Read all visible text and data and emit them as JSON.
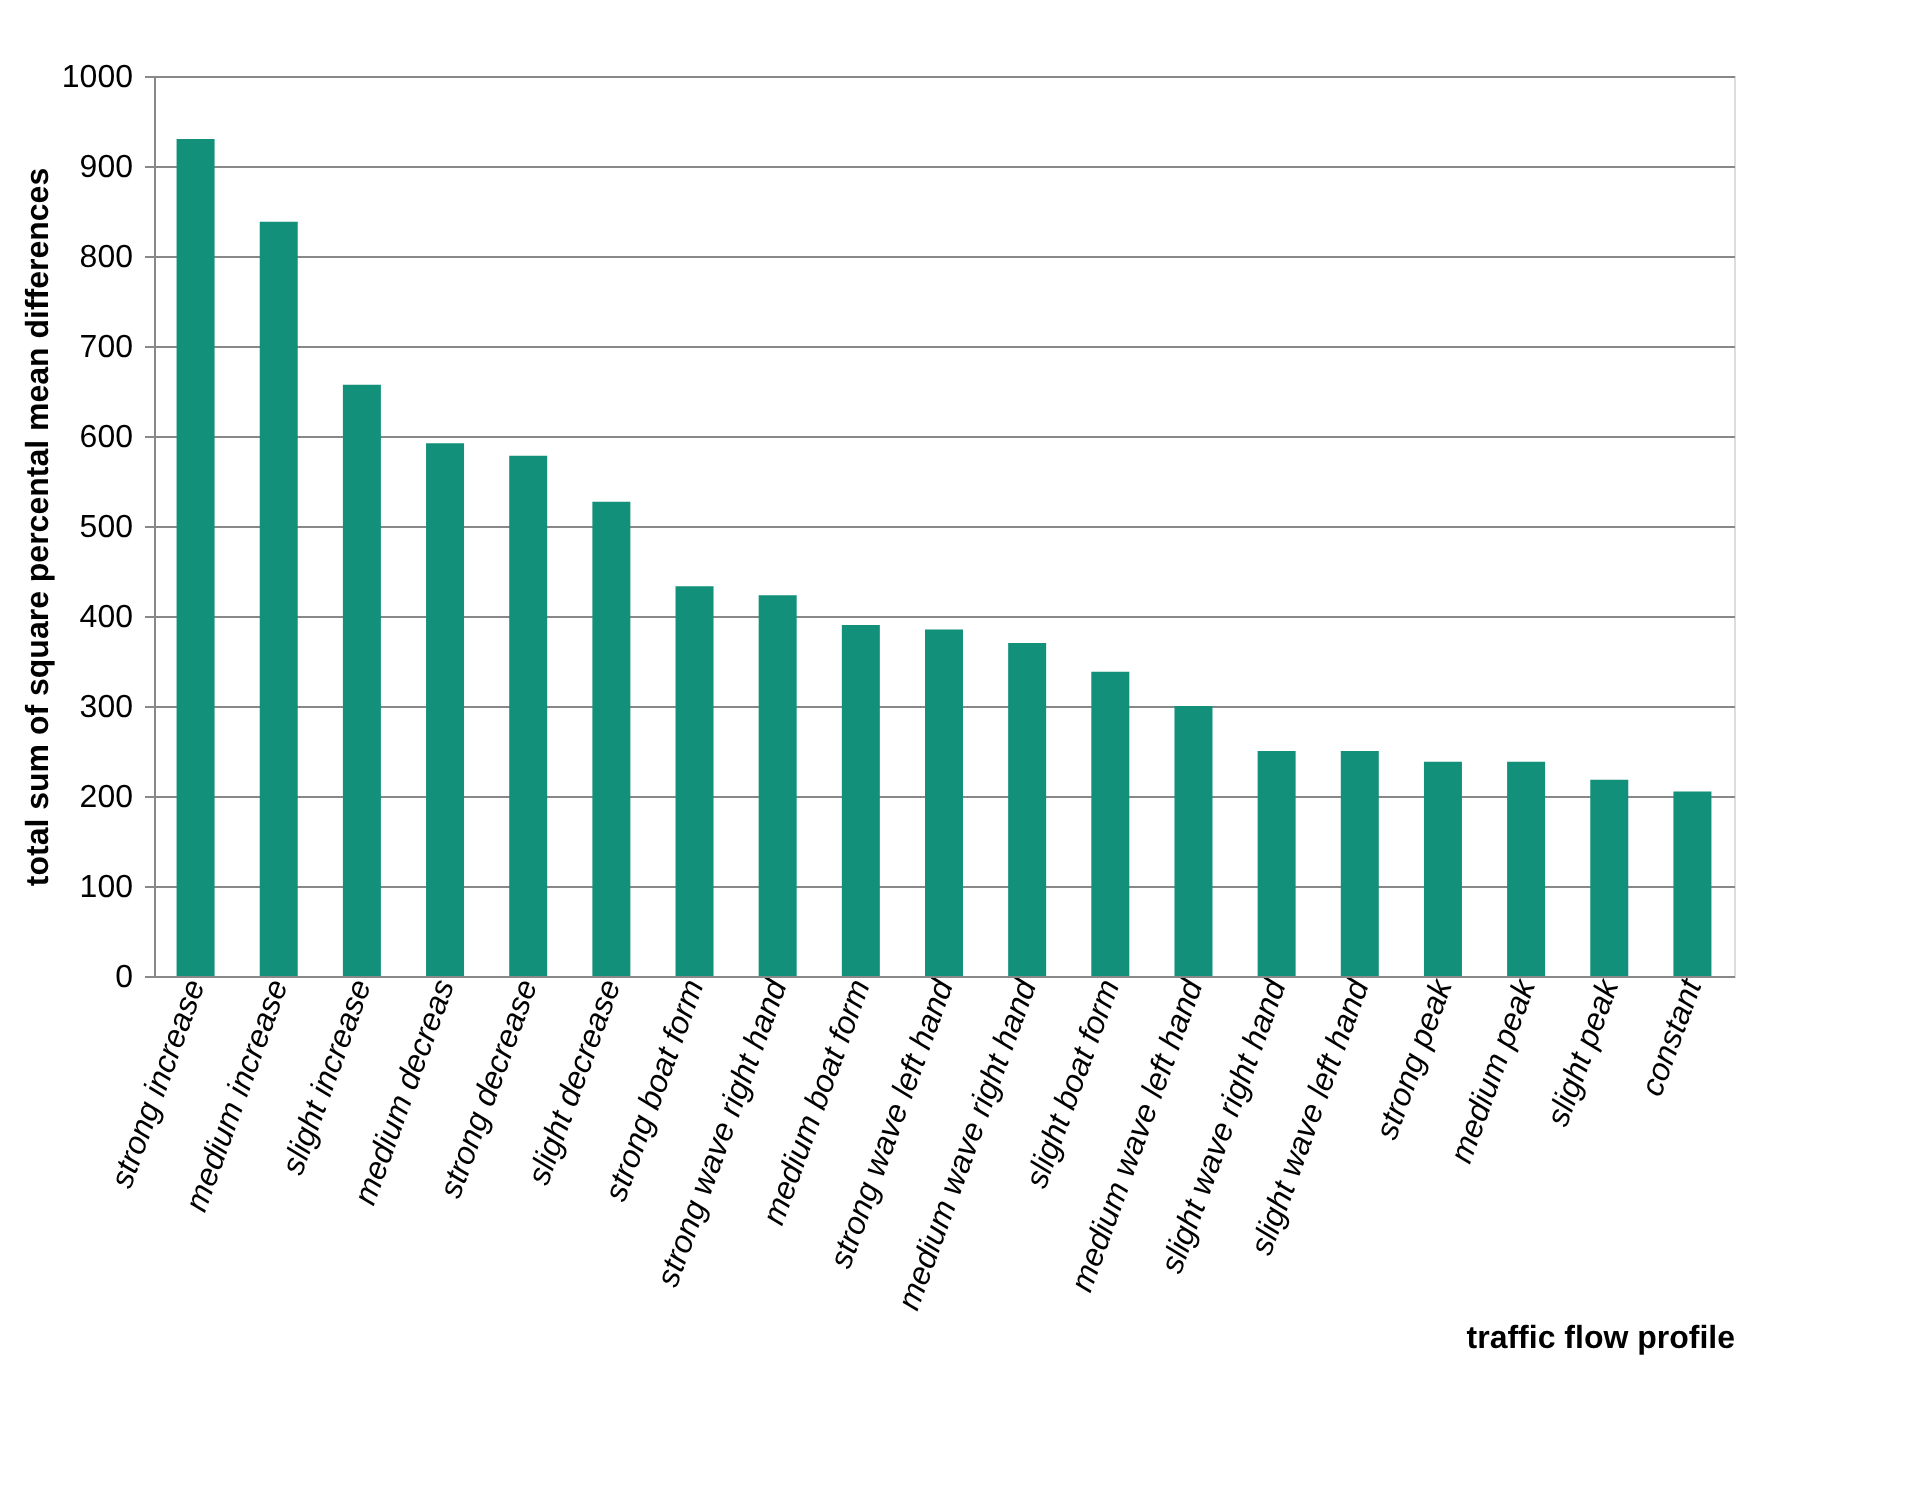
{
  "chart_data": {
    "type": "bar",
    "xlabel": "traffic flow profile",
    "ylabel": "total sum of square percental mean differences",
    "categories": [
      "strong increase",
      "medium increase",
      "slight increase",
      "medium decreas",
      "strong decrease",
      "slight decrease",
      "strong boat form",
      "strong wave right hand",
      "medium boat form",
      "strong wave left hand",
      "medium wave right hand",
      "slight boat form",
      "medium wave left hand",
      "slight wave right hand",
      "slight wave left hand",
      "strong peak",
      "medium peak",
      "slight peak",
      "constant"
    ],
    "values": [
      930,
      838,
      657,
      592,
      578,
      527,
      433,
      423,
      390,
      385,
      370,
      338,
      300,
      250,
      250,
      238,
      238,
      218,
      205
    ],
    "color": "#13907a",
    "ylim": [
      0,
      1000
    ],
    "yticks": [
      0,
      100,
      200,
      300,
      400,
      500,
      600,
      700,
      800,
      900,
      1000
    ],
    "grid": "y"
  }
}
